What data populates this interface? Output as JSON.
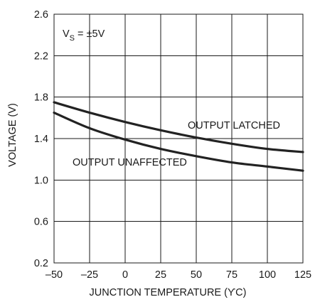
{
  "chart_data": {
    "type": "line",
    "xlabel": "JUNCTION TEMPERATURE (ϒC)",
    "ylabel": "VOLTAGE (V)",
    "xlim": [
      -50,
      125
    ],
    "ylim": [
      0.2,
      2.6
    ],
    "x_ticks": [
      "–50",
      "–25",
      "0",
      "25",
      "50",
      "75",
      "100",
      "125"
    ],
    "x_tick_values": [
      -50,
      -25,
      0,
      25,
      50,
      75,
      100,
      125
    ],
    "y_ticks": [
      "0.2",
      "0.6",
      "1.0",
      "1.4",
      "1.8",
      "2.2",
      "2.6"
    ],
    "y_tick_values": [
      0.2,
      0.6,
      1.0,
      1.4,
      1.8,
      2.2,
      2.6
    ],
    "grid": true,
    "condition": {
      "prefix": "V",
      "subscript": "S",
      "suffix": " = ±5V"
    },
    "series": [
      {
        "name": "OUTPUT LATCHED",
        "x": [
          -50,
          -25,
          0,
          25,
          50,
          75,
          100,
          125
        ],
        "y": [
          1.75,
          1.65,
          1.56,
          1.48,
          1.41,
          1.35,
          1.3,
          1.27
        ]
      },
      {
        "name": "OUTPUT UNAFFECTED",
        "x": [
          -50,
          -25,
          0,
          25,
          50,
          75,
          100,
          125
        ],
        "y": [
          1.65,
          1.5,
          1.39,
          1.3,
          1.23,
          1.17,
          1.13,
          1.09
        ]
      }
    ]
  }
}
